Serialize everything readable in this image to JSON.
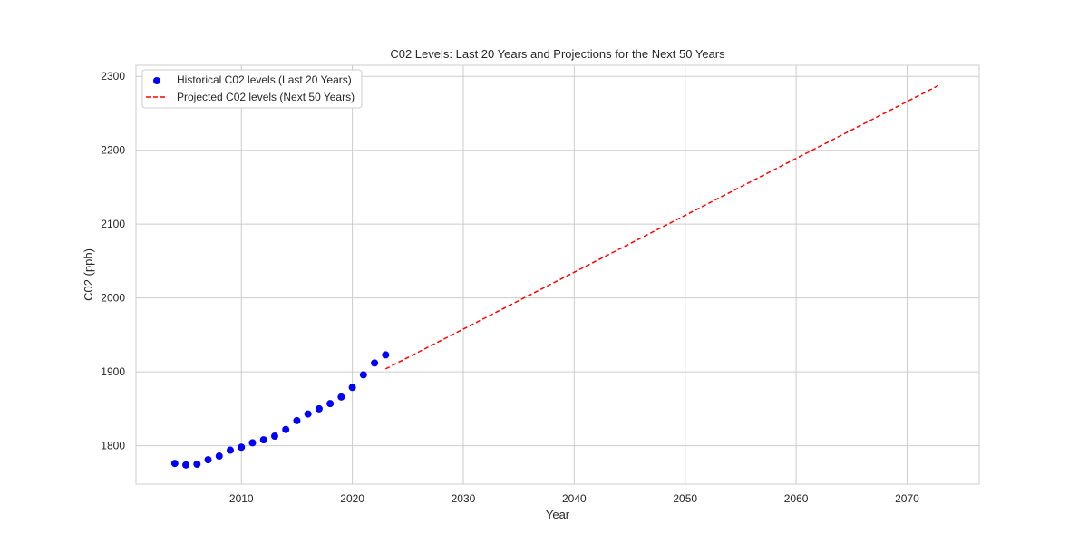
{
  "chart_data": {
    "type": "scatter",
    "title": "C02 Levels: Last 20 Years and Projections for the Next 50 Years",
    "xlabel": "Year",
    "ylabel": "C02 (ppb)",
    "xlim": [
      2000.5,
      2076.5
    ],
    "ylim": [
      1748,
      2315
    ],
    "xticks": [
      2010,
      2020,
      2030,
      2040,
      2050,
      2060,
      2070
    ],
    "yticks": [
      1800,
      1900,
      2000,
      2100,
      2200,
      2300
    ],
    "grid": true,
    "legend_position": "top-left",
    "series": [
      {
        "name": "Historical C02 levels (Last 20 Years)",
        "kind": "scatter",
        "color": "#0000ff",
        "points": [
          [
            2004,
            1776
          ],
          [
            2005,
            1774
          ],
          [
            2006,
            1775
          ],
          [
            2007,
            1781
          ],
          [
            2008,
            1786
          ],
          [
            2009,
            1794
          ],
          [
            2010,
            1798
          ],
          [
            2011,
            1804
          ],
          [
            2012,
            1808
          ],
          [
            2013,
            1813
          ],
          [
            2014,
            1822
          ],
          [
            2015,
            1834
          ],
          [
            2016,
            1843
          ],
          [
            2017,
            1850
          ],
          [
            2018,
            1857
          ],
          [
            2019,
            1866
          ],
          [
            2020,
            1879
          ],
          [
            2021,
            1896
          ],
          [
            2022,
            1912
          ],
          [
            2023,
            1923
          ]
        ]
      },
      {
        "name": "Projected C02 levels (Next 50 Years)",
        "kind": "line",
        "style": "dashed",
        "color": "#ff0000",
        "points": [
          [
            2023,
            1904
          ],
          [
            2073,
            2289
          ]
        ]
      }
    ]
  }
}
